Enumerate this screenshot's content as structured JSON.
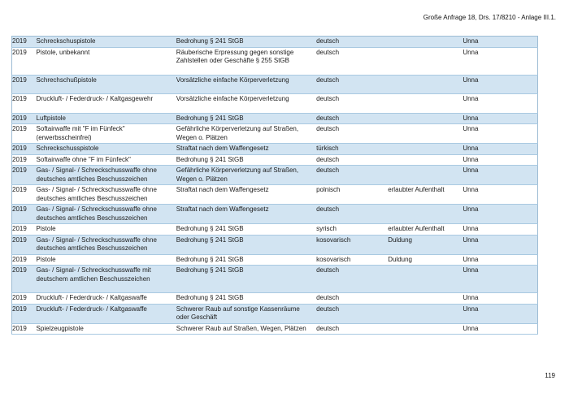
{
  "page": {
    "doc_reference": "Große Anfrage 18, Drs. 17/8210 - Anlage III.1.",
    "page_number": "119"
  },
  "colors": {
    "row_shaded": "#d2e4f2",
    "row_border": "#a9c9e1",
    "table_border": "#9dbcd4",
    "text": "#1c1c1c"
  },
  "table": {
    "columns": [
      "year",
      "weapon",
      "offense",
      "nationality",
      "residence_status",
      "city"
    ],
    "rows": [
      {
        "year": "2019",
        "weapon": "Schreckschuspistole",
        "offense": "Bedrohung § 241 StGB",
        "nationality": "deutsch",
        "residence_status": "",
        "city": "Unna",
        "extra_space": false
      },
      {
        "year": "2019",
        "weapon": "Pistole, unbekannt",
        "offense": "Räuberische Erpressung gegen sonstige Zahlstellen oder Geschäfte § 255 StGB",
        "nationality": "deutsch",
        "residence_status": "",
        "city": "Unna",
        "extra_space": true
      },
      {
        "year": "2019",
        "weapon": "Schrechschußpistole",
        "offense": "Vorsätzliche einfache Körperverletzung",
        "nationality": "deutsch",
        "residence_status": "",
        "city": "Unna",
        "extra_space": true
      },
      {
        "year": "2019",
        "weapon": "Druckluft- / Federdruck- / Kaltgasgewehr",
        "offense": "Vorsätzliche einfache Körperverletzung",
        "nationality": "deutsch",
        "residence_status": "",
        "city": "Unna",
        "extra_space": true
      },
      {
        "year": "2019",
        "weapon": "Luftpistole",
        "offense": "Bedrohung § 241 StGB",
        "nationality": "deutsch",
        "residence_status": "",
        "city": "Unna",
        "extra_space": false
      },
      {
        "year": "2019",
        "weapon": "Softairwaffe mit \"F im Fünfeck\" (erwerbsscheinfrei)",
        "offense": "Gefährliche Körperverletzung auf Straßen, Wegen o. Plätzen",
        "nationality": "deutsch",
        "residence_status": "",
        "city": "Unna",
        "extra_space": false
      },
      {
        "year": "2019",
        "weapon": "Schreckschusspistole",
        "offense": "Straftat nach dem Waffengesetz",
        "nationality": "türkisch",
        "residence_status": "",
        "city": "Unna",
        "extra_space": false
      },
      {
        "year": "2019",
        "weapon": "Softairwaffe ohne \"F im Fünfeck\"",
        "offense": "Bedrohung § 241 StGB",
        "nationality": "deutsch",
        "residence_status": "",
        "city": "Unna",
        "extra_space": false
      },
      {
        "year": "2019",
        "weapon": "Gas- / Signal- / Schreckschusswaffe ohne deutsches amtliches Beschusszeichen",
        "offense": "Gefährliche Körperverletzung auf Straßen, Wegen o. Plätzen",
        "nationality": "deutsch",
        "residence_status": "",
        "city": "Unna",
        "extra_space": false
      },
      {
        "year": "2019",
        "weapon": "Gas- / Signal- / Schreckschusswaffe ohne deutsches amtliches Beschusszeichen",
        "offense": "Straftat nach dem Waffengesetz",
        "nationality": "polnisch",
        "residence_status": "erlaubter Aufenthalt",
        "city": "Unna",
        "extra_space": false
      },
      {
        "year": "2019",
        "weapon": "Gas- / Signal- / Schreckschusswaffe ohne deutsches amtliches Beschusszeichen",
        "offense": "Straftat nach dem Waffengesetz",
        "nationality": "deutsch",
        "residence_status": "",
        "city": "Unna",
        "extra_space": false
      },
      {
        "year": "2019",
        "weapon": "Pistole",
        "offense": "Bedrohung § 241 StGB",
        "nationality": "syrisch",
        "residence_status": "erlaubter Aufenthalt",
        "city": "Unna",
        "extra_space": false
      },
      {
        "year": "2019",
        "weapon": "Gas- / Signal- / Schreckschusswaffe ohne deutsches amtliches Beschusszeichen",
        "offense": "Bedrohung § 241 StGB",
        "nationality": "kosovarisch",
        "residence_status": "Duldung",
        "city": "Unna",
        "extra_space": false
      },
      {
        "year": "2019",
        "weapon": "Pistole",
        "offense": "Bedrohung § 241 StGB",
        "nationality": "kosovarisch",
        "residence_status": "Duldung",
        "city": "Unna",
        "extra_space": false
      },
      {
        "year": "2019",
        "weapon": "Gas- / Signal- / Schreckschusswaffe mit deutschem amtlichen Beschusszeichen",
        "offense": "Bedrohung § 241 StGB",
        "nationality": "deutsch",
        "residence_status": "",
        "city": "Unna",
        "extra_space": true
      },
      {
        "year": "2019",
        "weapon": "Druckluft- / Federdruck- / Kaltgaswaffe",
        "offense": "Bedrohung § 241 StGB",
        "nationality": "deutsch",
        "residence_status": "",
        "city": "Unna",
        "extra_space": false
      },
      {
        "year": "2019",
        "weapon": "Druckluft- / Federdruck- / Kaltgaswaffe",
        "offense": "Schwerer Raub auf sonstige Kassenräume oder Geschäft",
        "nationality": "deutsch",
        "residence_status": "",
        "city": "Unna",
        "extra_space": false
      },
      {
        "year": "2019",
        "weapon": "Spielzeugpistole",
        "offense": "Schwerer Raub auf Straßen, Wegen, Plätzen",
        "nationality": "deutsch",
        "residence_status": "",
        "city": "Unna",
        "extra_space": false
      }
    ]
  }
}
